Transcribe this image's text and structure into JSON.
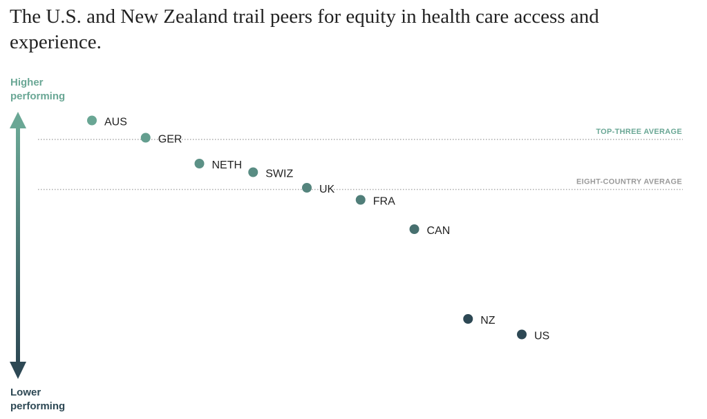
{
  "chart_data": {
    "type": "scatter",
    "title": "The U.S. and New Zealand trail peers for equity in health care access and experience.",
    "y_axis": {
      "high_label": [
        "Higher",
        "performing"
      ],
      "low_label": [
        "Lower",
        "performing"
      ]
    },
    "series": [
      {
        "name": "AUS",
        "rank": 1,
        "value": 0.95
      },
      {
        "name": "GER",
        "rank": 2,
        "value": 0.85
      },
      {
        "name": "NETH",
        "rank": 3,
        "value": 0.7
      },
      {
        "name": "SWIZ",
        "rank": 4,
        "value": 0.65
      },
      {
        "name": "UK",
        "rank": 5,
        "value": 0.56
      },
      {
        "name": "FRA",
        "rank": 6,
        "value": 0.49
      },
      {
        "name": "CAN",
        "rank": 7,
        "value": 0.32
      },
      {
        "name": "NZ",
        "rank": 8,
        "value": -0.2
      },
      {
        "name": "US",
        "rank": 9,
        "value": -0.29
      }
    ],
    "reference_lines": [
      {
        "label": "TOP-THREE AVERAGE",
        "value": 0.84,
        "color": "#6aa795"
      },
      {
        "label": "EIGHT-COUNTRY AVERAGE",
        "value": 0.55,
        "color": "#9a9a9a"
      }
    ],
    "ylim": [
      -0.8,
      1.2
    ],
    "colors": {
      "high": "#6aa795",
      "low": "#2d4854",
      "label_text": "#222222"
    }
  }
}
